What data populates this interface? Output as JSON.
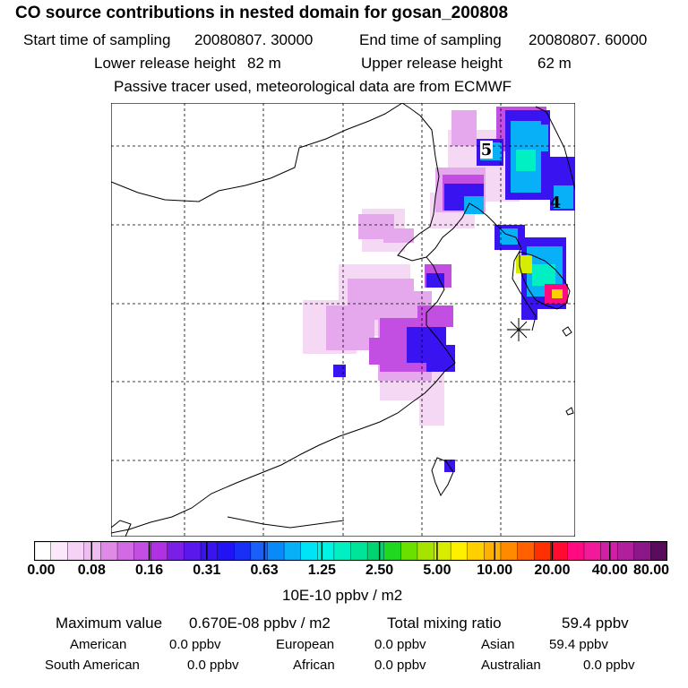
{
  "header": {
    "title": "CO  source contributions in nested domain for gosan_200808",
    "start_label": "Start time of sampling",
    "start_value": "20080807. 30000",
    "end_label": "End time of sampling",
    "end_value": "20080807. 60000",
    "lower_label": "Lower release height",
    "lower_value": "82 m",
    "upper_label": "Upper release height",
    "upper_value": "62 m",
    "tracer_note": "Passive tracer used, meteorological data are from ECMWF"
  },
  "map": {
    "marker_labels": [
      "5",
      "4"
    ],
    "receptor_symbol": "✳"
  },
  "chart_data": {
    "type": "heatmap",
    "title": "CO  source contributions in nested domain for gosan_200808",
    "units": "10E-10 ppbv / m2",
    "colorbar": {
      "tick_labels": [
        "0.00",
        "0.08",
        "0.16",
        "0.31",
        "0.63",
        "1.25",
        "2.50",
        "5.00",
        "10.00",
        "20.00",
        "40.00",
        "80.00"
      ],
      "colors": [
        "#ffffff",
        "#fbe9fb",
        "#f6d2f6",
        "#f0bdf0",
        "#e08ae8",
        "#d26ae4",
        "#c24ee2",
        "#b030e4",
        "#7a1ee8",
        "#5a18ec",
        "#3a14f0",
        "#2014f4",
        "#1830f6",
        "#1a60f8",
        "#0a8af8",
        "#08b0f8",
        "#00e4f8",
        "#00f4e4",
        "#00f0c4",
        "#00e49a",
        "#00d470",
        "#20d820",
        "#6ae000",
        "#a4e400",
        "#d8ec00",
        "#fff000",
        "#ffd000",
        "#ffb000",
        "#ff8a00",
        "#ff6000",
        "#ff3000",
        "#ff0a30",
        "#ff0a80",
        "#f01a9a",
        "#d020a4",
        "#b0209c",
        "#8a1888",
        "#5a0c5c"
      ]
    },
    "max_value": "0.670E-08 ppbv / m2",
    "total_mixing_ratio": "59.4 ppbv",
    "regions": [
      {
        "name": "American",
        "value": 0.0
      },
      {
        "name": "European",
        "value": 0.0
      },
      {
        "name": "Asian",
        "value": 59.4
      },
      {
        "name": "South American",
        "value": 0.0
      },
      {
        "name": "African",
        "value": 0.0
      },
      {
        "name": "Australian",
        "value": 0.0
      }
    ]
  },
  "footer": {
    "units": "10E-10 ppbv / m2",
    "max_label": "Maximum value",
    "max_value": "0.670E-08 ppbv / m2",
    "total_label": "Total mixing ratio",
    "total_value": "59.4 ppbv",
    "american_label": "American",
    "american_value": "0.0 ppbv",
    "european_label": "European",
    "european_value": "0.0 ppbv",
    "asian_label": "Asian",
    "asian_value": "59.4 ppbv",
    "south_american_label": "South American",
    "south_american_value": "0.0 ppbv",
    "african_label": "African",
    "african_value": "0.0 ppbv",
    "australian_label": "Australian",
    "australian_value": "0.0 ppbv"
  }
}
